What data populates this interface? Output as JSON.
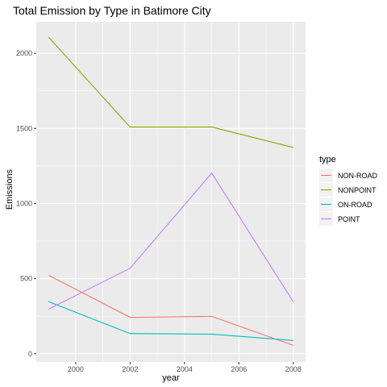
{
  "chart_data": {
    "type": "line",
    "title": "Total Emission by Type in Batimore City",
    "xlabel": "year",
    "ylabel": "Emissions",
    "x": [
      1999,
      2002,
      2005,
      2008
    ],
    "xticks": [
      2000,
      2002,
      2004,
      2006,
      2008
    ],
    "yticks": [
      0,
      500,
      1000,
      1500,
      2000
    ],
    "xlim": [
      1998.55,
      2008.45
    ],
    "ylim": [
      -55,
      2210
    ],
    "grid": true,
    "legend": {
      "title": "type",
      "position": "right"
    },
    "series": [
      {
        "name": "NON-ROAD",
        "color": "#F8766D",
        "values": [
          522.9,
          242.1,
          248.9,
          55.8
        ]
      },
      {
        "name": "NONPOINT",
        "color": "#7CAE00",
        "values": [
          2108,
          1509,
          1509,
          1373
        ]
      },
      {
        "name": "ON-ROAD",
        "color": "#00BFC4",
        "values": [
          346.8,
          134.3,
          130.4,
          88.3
        ]
      },
      {
        "name": "POINT",
        "color": "#C77CFF",
        "values": [
          296.8,
          569.3,
          1202.5,
          344.98
        ]
      }
    ]
  }
}
